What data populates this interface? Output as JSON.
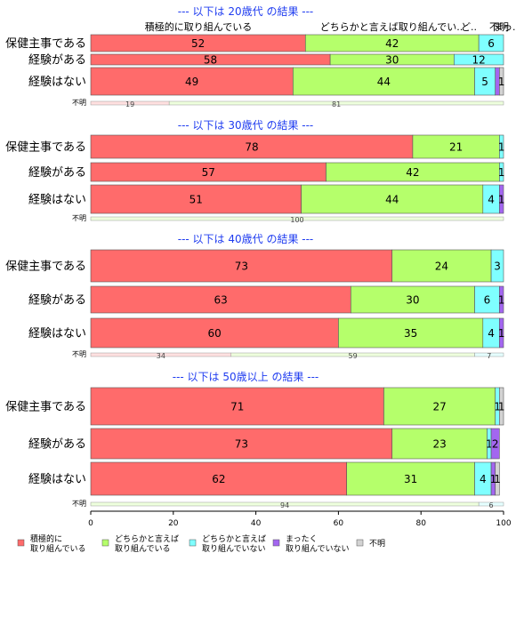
{
  "chart_data": {
    "type": "bar",
    "stacked": true,
    "orientation": "horizontal",
    "xlim": [
      0,
      100
    ],
    "xticks": [
      0,
      20,
      40,
      60,
      80,
      100
    ],
    "header_labels": [
      "積極的に取り組んでいる",
      "どちらかと言えば取り組んでい..",
      "ど..",
      "不明",
      "まっ."
    ],
    "legend": [
      {
        "name": "積極的に\n取り組んでいる",
        "color": "#FF6B6B"
      },
      {
        "name": "どちらかと言えば\n取り組んでいる",
        "color": "#B5FF6B"
      },
      {
        "name": "どちらかと言えば\n取り組んでいない",
        "color": "#7FFFFF"
      },
      {
        "name": "まったく\n取り組んでいない",
        "color": "#A366F0"
      },
      {
        "name": "不明",
        "color": "#D3D3D3"
      }
    ],
    "groups": [
      {
        "title": "--- 以下は 20歳代 の結果 ---",
        "rows": [
          {
            "label": "保健主事である",
            "values": [
              52,
              42,
              6,
              0,
              0
            ],
            "labels": [
              "52",
              "42",
              "6",
              "",
              ""
            ]
          },
          {
            "label": "経験がある",
            "values": [
              58,
              30,
              12,
              0,
              0
            ],
            "labels": [
              "58",
              "30",
              "12",
              "",
              ""
            ]
          },
          {
            "label": "経験はない",
            "values": [
              49,
              44,
              5,
              1,
              1
            ],
            "labels": [
              "49",
              "44",
              "5",
              "",
              "1"
            ]
          }
        ],
        "unknown": {
          "label": "不明",
          "values": [
            19,
            81,
            0,
            0,
            0
          ],
          "labels": [
            "19",
            "81",
            "",
            "",
            ""
          ]
        }
      },
      {
        "title": "--- 以下は 30歳代 の結果 ---",
        "rows": [
          {
            "label": "保健主事である",
            "values": [
              78,
              21,
              1,
              0,
              0
            ],
            "labels": [
              "78",
              "21",
              "1",
              "",
              ""
            ]
          },
          {
            "label": "経験がある",
            "values": [
              57,
              42,
              1,
              0,
              0
            ],
            "labels": [
              "57",
              "42",
              "1",
              "",
              ""
            ]
          },
          {
            "label": "経験はない",
            "values": [
              51,
              44,
              4,
              1,
              0
            ],
            "labels": [
              "51",
              "44",
              "4",
              "1",
              ""
            ]
          }
        ],
        "unknown": {
          "label": "不明",
          "values": [
            0,
            100,
            0,
            0,
            0
          ],
          "labels": [
            "",
            "100",
            "",
            "",
            ""
          ]
        }
      },
      {
        "title": "--- 以下は 40歳代 の結果 ---",
        "rows": [
          {
            "label": "保健主事である",
            "values": [
              73,
              24,
              3,
              0,
              0
            ],
            "labels": [
              "73",
              "24",
              "3",
              "",
              ""
            ]
          },
          {
            "label": "経験がある",
            "values": [
              63,
              30,
              6,
              1,
              0
            ],
            "labels": [
              "63",
              "30",
              "6",
              "1",
              ""
            ]
          },
          {
            "label": "経験はない",
            "values": [
              60,
              35,
              4,
              1,
              0
            ],
            "labels": [
              "60",
              "35",
              "4",
              "1",
              ""
            ]
          }
        ],
        "unknown": {
          "label": "不明",
          "values": [
            34,
            59,
            7,
            0,
            0
          ],
          "labels": [
            "34",
            "59",
            "7",
            "",
            ""
          ]
        }
      },
      {
        "title": "--- 以下は 50歳以上 の結果 ---",
        "rows": [
          {
            "label": "保健主事である",
            "values": [
              71,
              27,
              1,
              0,
              1
            ],
            "labels": [
              "71",
              "27",
              "1",
              "",
              "1"
            ]
          },
          {
            "label": "経験がある",
            "values": [
              73,
              23,
              1,
              2,
              0
            ],
            "labels": [
              "73",
              "23",
              "1",
              "2",
              ""
            ]
          },
          {
            "label": "経験はない",
            "values": [
              62,
              31,
              4,
              1,
              1
            ],
            "labels": [
              "62",
              "31",
              "4",
              "1",
              "1"
            ]
          }
        ],
        "unknown": {
          "label": "不明",
          "values": [
            0,
            94,
            6,
            0,
            0
          ],
          "labels": [
            "",
            "94",
            "6",
            "",
            ""
          ]
        }
      }
    ]
  }
}
